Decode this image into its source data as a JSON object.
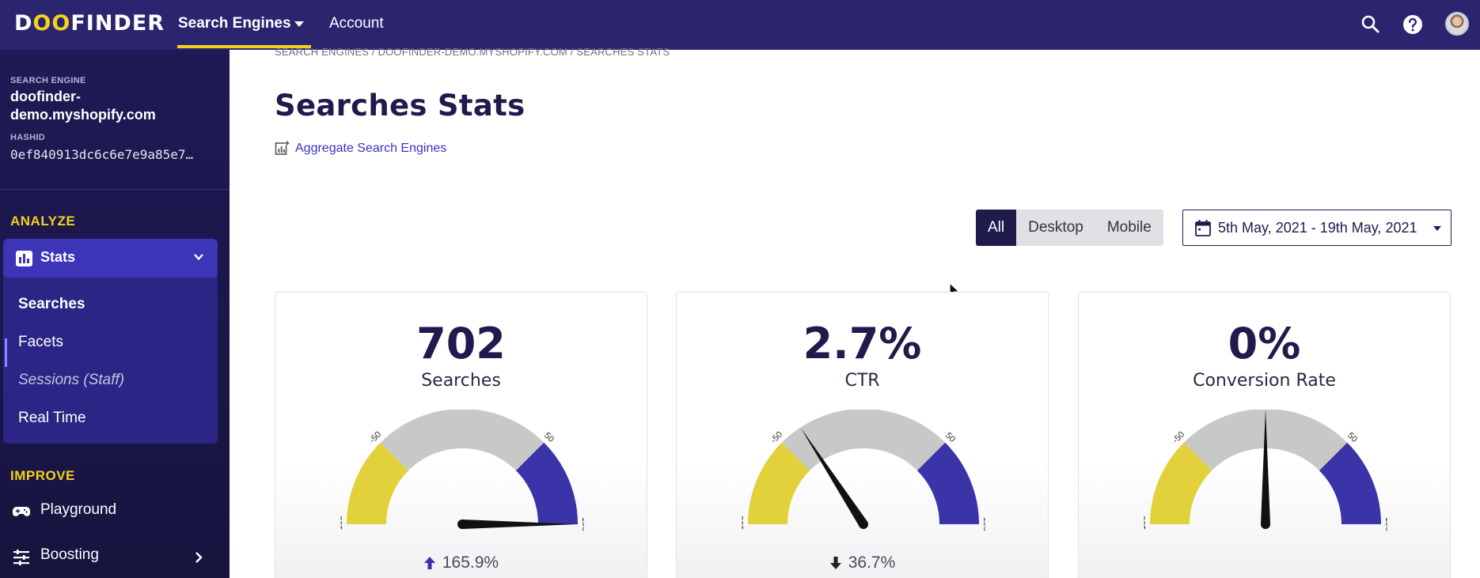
{
  "topbar": {
    "logo_pre": "D",
    "logo_oo": "OO",
    "logo_post": "FINDER",
    "nav": {
      "search_engines": "Search Engines",
      "account": "Account"
    }
  },
  "sidebar": {
    "engine_label": "SEARCH ENGINE",
    "engine_name": "doofinder-demo.myshopify.com",
    "hashid_label": "HASHID",
    "hashid": "0ef840913dc6c6e7e9a85e7…",
    "analyze_title": "ANALYZE",
    "stats_label": "Stats",
    "stats_items": [
      "Searches",
      "Facets",
      "Sessions (Staff)",
      "Real Time"
    ],
    "improve_title": "IMPROVE",
    "improve_items": [
      "Playground",
      "Boosting"
    ]
  },
  "main": {
    "breadcrumb": "SEARCH ENGINES / DOOFINDER-DEMO.MYSHOPIFY.COM / SEARCHES STATS",
    "title": "Searches Stats",
    "aggregate_link": "Aggregate Search Engines",
    "device_filter": {
      "options": [
        "All",
        "Desktop",
        "Mobile"
      ],
      "selected": "All"
    },
    "date_range": "5th May, 2021 - 19th May, 2021"
  },
  "cards": [
    {
      "value": "702",
      "label": "Searches",
      "change": "165.9%",
      "direction": "up",
      "needle": 165.9
    },
    {
      "value": "2.7%",
      "label": "CTR",
      "change": "36.7%",
      "direction": "down",
      "needle": -36.7
    },
    {
      "value": "0%",
      "label": "Conversion Rate",
      "change": "",
      "direction": "none",
      "needle": 0
    }
  ],
  "gauge": {
    "ticks": [
      "-100",
      "-50",
      "0",
      "50",
      "100"
    ],
    "colors": {
      "negative": "#e2d13a",
      "neutral": "#c8c8c8",
      "positive": "#3a34a8",
      "needle": "#111111"
    }
  },
  "colors": {
    "brand": "#2b2570",
    "accent": "#f5d21a",
    "link": "#3a34c4"
  }
}
